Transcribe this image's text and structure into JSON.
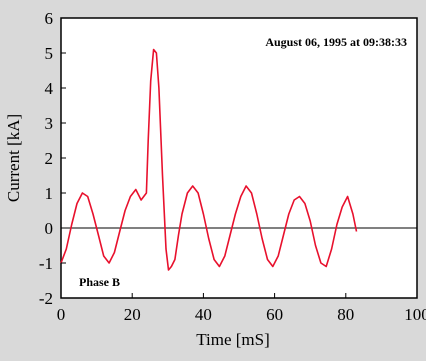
{
  "chart_data": {
    "type": "line",
    "annotation": "August 06, 1995 at 09:38:33",
    "xlabel": "Time [mS]",
    "ylabel": "Current [kA]",
    "xlim": [
      0,
      100
    ],
    "ylim": [
      -2,
      6
    ],
    "xticks": [
      0,
      20,
      40,
      60,
      80,
      100
    ],
    "yticks": [
      -2,
      -1,
      0,
      1,
      2,
      3,
      4,
      5,
      6
    ],
    "series": [
      {
        "name": "Phase B",
        "color": "#e8112d",
        "x": [
          0,
          1.5,
          3,
          4.5,
          6,
          7.5,
          9,
          10.5,
          12,
          13.5,
          15,
          16.5,
          18,
          19.5,
          21,
          22.5,
          24,
          24.5,
          25.2,
          26,
          26.8,
          27.5,
          28.5,
          29.5,
          30.2,
          31,
          32,
          33,
          34,
          35.5,
          37,
          38.5,
          40,
          41.5,
          43,
          44.5,
          46,
          47.5,
          49,
          50.5,
          52,
          53.5,
          55,
          56.5,
          58,
          59.5,
          61,
          62.5,
          64,
          65.5,
          67,
          68.5,
          70,
          71.5,
          73,
          74.5,
          76,
          77.5,
          79,
          80.5,
          82,
          83
        ],
        "values": [
          -1.0,
          -0.6,
          0.1,
          0.7,
          1.0,
          0.9,
          0.4,
          -0.2,
          -0.8,
          -1.0,
          -0.7,
          -0.1,
          0.5,
          0.9,
          1.1,
          0.8,
          1.0,
          2.5,
          4.2,
          5.1,
          5.0,
          4.0,
          1.5,
          -0.6,
          -1.2,
          -1.1,
          -0.9,
          -0.2,
          0.4,
          1.0,
          1.2,
          1.0,
          0.4,
          -0.3,
          -0.9,
          -1.1,
          -0.8,
          -0.2,
          0.4,
          0.9,
          1.2,
          1.0,
          0.4,
          -0.3,
          -0.9,
          -1.1,
          -0.8,
          -0.2,
          0.4,
          0.8,
          0.9,
          0.7,
          0.2,
          -0.5,
          -1.0,
          -1.1,
          -0.6,
          0.1,
          0.6,
          0.9,
          0.4,
          -0.1
        ]
      }
    ]
  }
}
